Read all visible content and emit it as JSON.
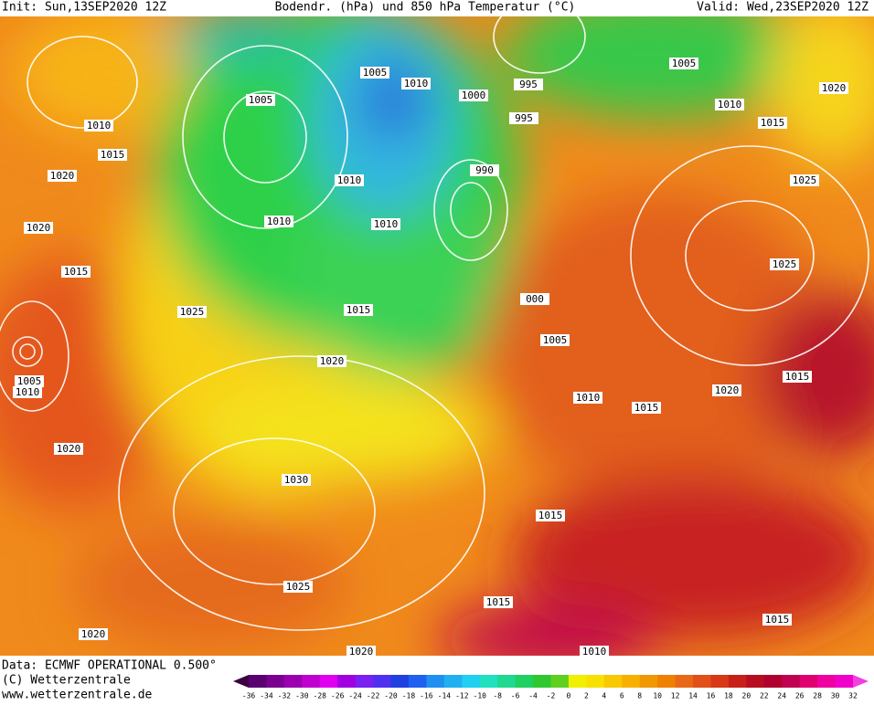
{
  "header": {
    "init": "Init: Sun,13SEP2020 12Z",
    "title": "Bodendr. (hPa) und 850 hPa Temperatur (°C)",
    "valid": "Valid: Wed,23SEP2020 12Z"
  },
  "footer": {
    "data": "Data: ECMWF OPERATIONAL 0.500°",
    "copyright": "(C) Wetterzentrale",
    "website": "www.wetterzentrale.de"
  },
  "isobar_labels": [
    "1005",
    "1010",
    "1000",
    "995",
    "995",
    "1005",
    "1020",
    "1010",
    "1015",
    "1005",
    "1010",
    "1015",
    "1020",
    "1020",
    "1015",
    "990",
    "1010",
    "1010",
    "1010",
    "1025",
    "1025",
    "000",
    "1005",
    "1015",
    "1025",
    "1020",
    "1005",
    "1010",
    "1010",
    "1015",
    "1020",
    "1015",
    "1020",
    "1030",
    "1015",
    "1025",
    "1015",
    "1015",
    "1020",
    "1020",
    "1010"
  ],
  "colorbar_labels": [
    -36,
    -34,
    -32,
    -30,
    -28,
    -26,
    -24,
    -22,
    -20,
    -18,
    -16,
    -14,
    -12,
    -10,
    -8,
    -6,
    -4,
    -2,
    0,
    2,
    4,
    6,
    8,
    10,
    12,
    14,
    16,
    18,
    20,
    22,
    24,
    26,
    28,
    30,
    32
  ]
}
